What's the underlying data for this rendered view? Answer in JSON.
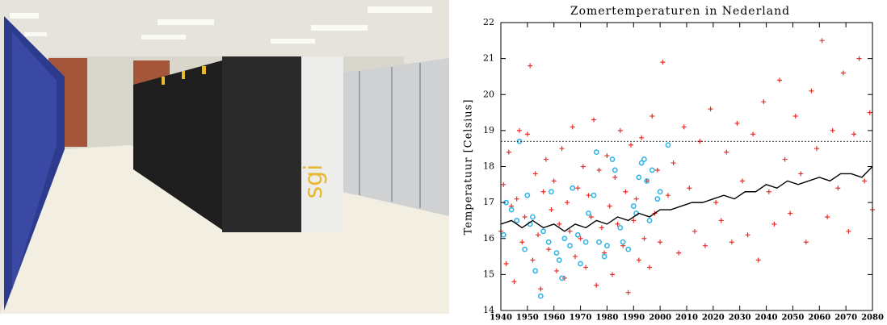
{
  "photo": {
    "logo": "sgi"
  },
  "chart_data": {
    "type": "scatter",
    "title": "Zomertemperaturen in Nederland",
    "y_label": "Temperatuur [Celsius]",
    "xlim": [
      1940,
      2080
    ],
    "xticks": [
      1940,
      1950,
      1960,
      1970,
      1980,
      1990,
      2000,
      2010,
      2020,
      2030,
      2040,
      2050,
      2060,
      2070,
      2080
    ],
    "ylim": [
      14,
      22
    ],
    "yticks": [
      14,
      15,
      16,
      17,
      18,
      19,
      20,
      21,
      22
    ],
    "hline": 18.7,
    "series": [
      {
        "marker": "plus",
        "color": "#e8302a",
        "x": [
          1940,
          1941,
          1942,
          1943,
          1944,
          1945,
          1946,
          1947,
          1948,
          1949,
          1950,
          1951,
          1952,
          1953,
          1954,
          1955,
          1956,
          1957,
          1958,
          1959,
          1960,
          1961,
          1962,
          1963,
          1964,
          1965,
          1966,
          1967,
          1968,
          1969,
          1970,
          1971,
          1972,
          1973,
          1974,
          1975,
          1976,
          1977,
          1978,
          1979,
          1980,
          1981,
          1982,
          1983,
          1984,
          1985,
          1986,
          1987,
          1988,
          1989,
          1990,
          1991,
          1992,
          1993,
          1994,
          1995,
          1996,
          1997,
          1998,
          1999,
          2000,
          2001,
          2003,
          2005,
          2007,
          2009,
          2011,
          2013,
          2015,
          2017,
          2019,
          2021,
          2023,
          2025,
          2027,
          2029,
          2031,
          2033,
          2035,
          2037,
          2039,
          2041,
          2043,
          2045,
          2047,
          2049,
          2051,
          2053,
          2055,
          2057,
          2059,
          2061,
          2063,
          2065,
          2067,
          2069,
          2071,
          2073,
          2075,
          2077,
          2079,
          2080
        ],
        "values": [
          16.2,
          17.5,
          15.3,
          18.4,
          16.9,
          14.8,
          17.1,
          19.0,
          15.9,
          16.6,
          18.9,
          20.8,
          15.4,
          17.8,
          16.1,
          14.6,
          17.3,
          18.2,
          15.7,
          16.8,
          17.6,
          15.1,
          16.4,
          18.5,
          14.9,
          17.0,
          16.2,
          19.1,
          15.5,
          17.4,
          16.0,
          18.0,
          15.2,
          17.2,
          16.6,
          19.3,
          14.7,
          17.9,
          16.3,
          15.6,
          18.3,
          16.9,
          15.0,
          17.7,
          16.4,
          19.0,
          15.8,
          17.3,
          14.5,
          18.6,
          16.5,
          17.1,
          15.4,
          18.8,
          16.0,
          17.6,
          15.2,
          19.4,
          16.7,
          17.9,
          15.9,
          20.9,
          17.2,
          18.1,
          15.6,
          19.1,
          17.4,
          16.2,
          18.7,
          15.8,
          19.6,
          17.0,
          16.5,
          18.4,
          15.9,
          19.2,
          17.6,
          16.1,
          18.9,
          15.4,
          19.8,
          17.3,
          16.4,
          20.4,
          18.2,
          16.7,
          19.4,
          17.8,
          15.9,
          20.1,
          18.5,
          21.5,
          16.6,
          19.0,
          17.4,
          20.6,
          16.2,
          18.9,
          21.0,
          17.6,
          19.5,
          16.8
        ]
      },
      {
        "marker": "circle",
        "color": "#35b5e8",
        "x": [
          1941,
          1942,
          1944,
          1946,
          1947,
          1949,
          1950,
          1951,
          1952,
          1953,
          1955,
          1956,
          1958,
          1959,
          1961,
          1962,
          1963,
          1964,
          1966,
          1967,
          1969,
          1970,
          1972,
          1973,
          1975,
          1976,
          1977,
          1979,
          1980,
          1982,
          1983,
          1985,
          1986,
          1988,
          1990,
          1991,
          1992,
          1993,
          1994,
          1995,
          1996,
          1997,
          1999,
          2000,
          2003
        ],
        "values": [
          16.1,
          17.0,
          16.8,
          16.5,
          18.7,
          15.7,
          17.2,
          16.4,
          16.6,
          15.1,
          14.4,
          16.2,
          15.9,
          17.3,
          15.6,
          15.4,
          14.9,
          16.0,
          15.8,
          17.4,
          16.1,
          15.3,
          15.9,
          16.7,
          17.2,
          18.4,
          15.9,
          15.5,
          15.8,
          18.2,
          17.9,
          16.3,
          15.9,
          15.7,
          16.9,
          16.7,
          17.7,
          18.1,
          18.2,
          17.6,
          16.5,
          17.9,
          17.1,
          17.3,
          18.6
        ]
      },
      {
        "marker": "line",
        "color": "#000000",
        "x": [
          1940,
          1944,
          1948,
          1952,
          1956,
          1960,
          1964,
          1968,
          1972,
          1976,
          1980,
          1984,
          1988,
          1992,
          1996,
          2000,
          2004,
          2008,
          2012,
          2016,
          2020,
          2024,
          2028,
          2032,
          2036,
          2040,
          2044,
          2048,
          2052,
          2056,
          2060,
          2064,
          2068,
          2072,
          2076,
          2080
        ],
        "values": [
          16.4,
          16.5,
          16.3,
          16.5,
          16.3,
          16.4,
          16.2,
          16.4,
          16.3,
          16.5,
          16.4,
          16.6,
          16.5,
          16.7,
          16.6,
          16.8,
          16.8,
          16.9,
          17.0,
          17.0,
          17.1,
          17.2,
          17.1,
          17.3,
          17.3,
          17.5,
          17.4,
          17.6,
          17.5,
          17.6,
          17.7,
          17.6,
          17.8,
          17.8,
          17.7,
          18.0
        ]
      }
    ]
  }
}
